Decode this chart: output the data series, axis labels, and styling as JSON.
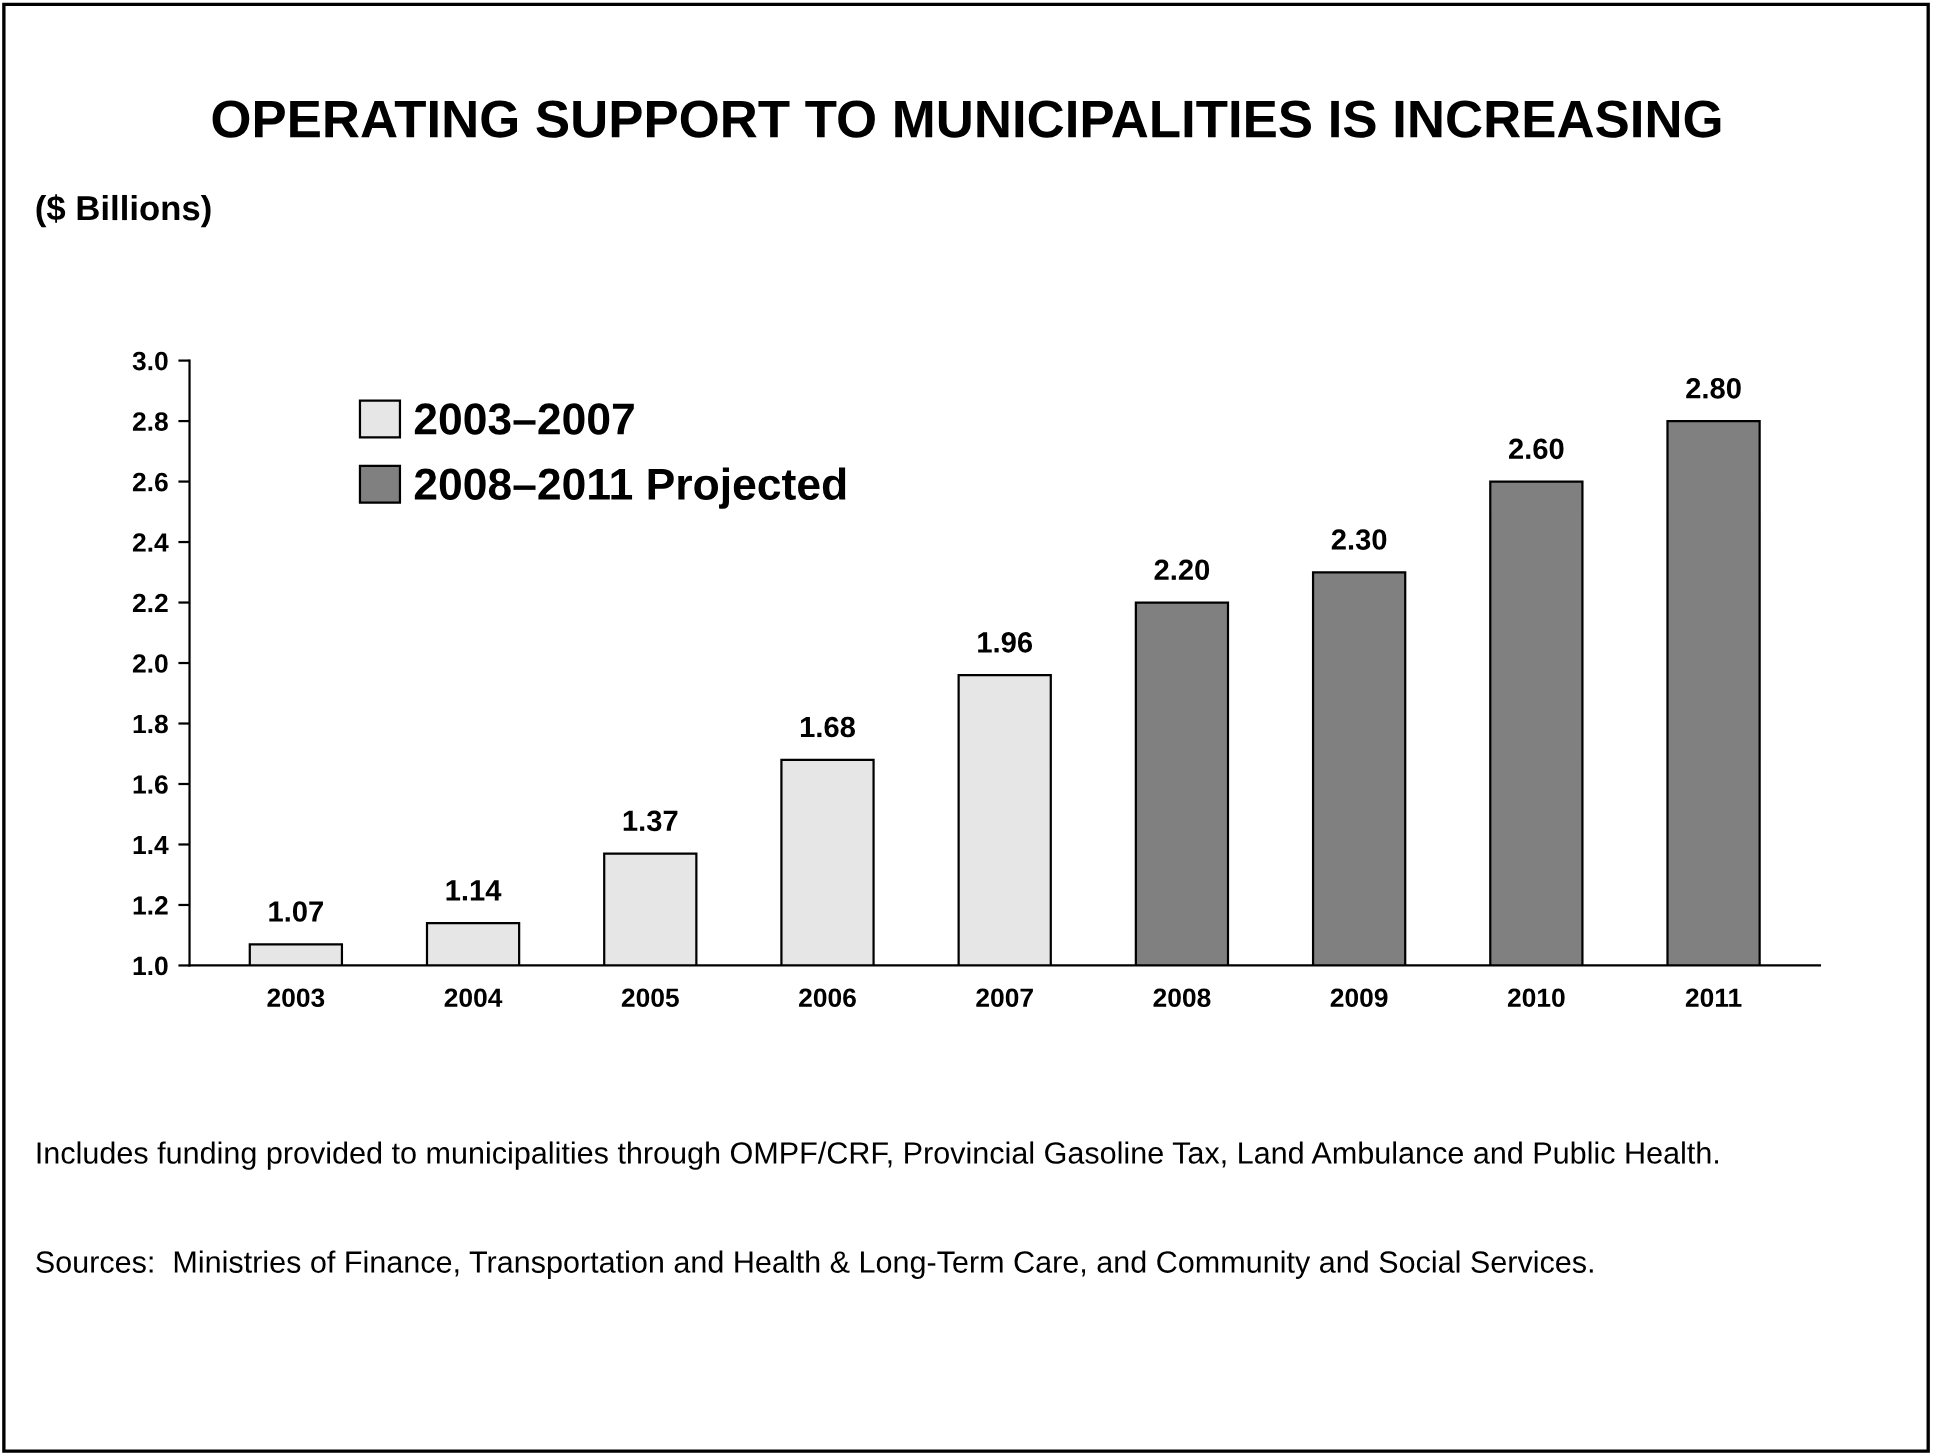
{
  "chart_data": {
    "type": "bar",
    "title": "OPERATING SUPPORT TO MUNICIPALITIES IS INCREASING",
    "ylabel": "($ Billions)",
    "categories": [
      "2003",
      "2004",
      "2005",
      "2006",
      "2007",
      "2008",
      "2009",
      "2010",
      "2011"
    ],
    "series": [
      {
        "name": "2003–2007",
        "color": "#e6e6e6",
        "values": [
          1.07,
          1.14,
          1.37,
          1.68,
          1.96,
          null,
          null,
          null,
          null
        ],
        "value_labels": [
          "1.07",
          "1.14",
          "1.37",
          "1.68",
          "1.96",
          null,
          null,
          null,
          null
        ]
      },
      {
        "name": "2008–2011 Projected",
        "color": "#808080",
        "values": [
          null,
          null,
          null,
          null,
          null,
          2.2,
          2.3,
          2.6,
          2.8
        ],
        "value_labels": [
          null,
          null,
          null,
          null,
          null,
          "2.20",
          "2.30",
          "2.60",
          "2.80"
        ]
      }
    ],
    "ylim": [
      1.0,
      3.0
    ],
    "yticks": [
      "1.0",
      "1.2",
      "1.4",
      "1.6",
      "1.8",
      "2.0",
      "2.2",
      "2.4",
      "2.6",
      "2.8",
      "3.0"
    ],
    "grid": false,
    "legend": "top left",
    "annotations": [
      "Includes funding provided to municipalities through OMPF/CRF, Provincial Gasoline Tax, Land Ambulance and Public Health.",
      "Sources:  Ministries of Finance, Transportation and Health & Long-Term Care, and Community and Social Services."
    ]
  }
}
